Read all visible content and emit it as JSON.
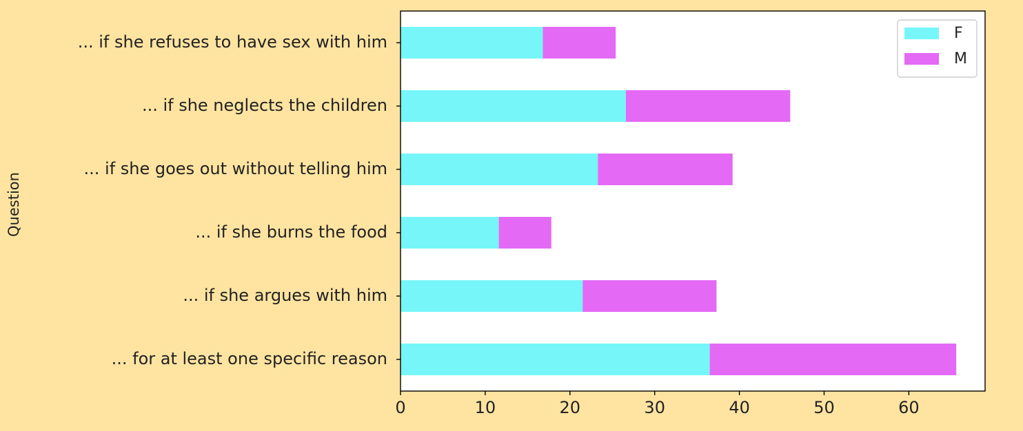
{
  "chart_data": {
    "type": "bar",
    "orientation": "horizontal",
    "stacked": true,
    "categories": [
      "... if she refuses to have sex with him",
      "... if she neglects the children",
      "... if she goes out without telling him",
      "... if she burns the food",
      "... if she argues with him",
      "... for at least one specific reason"
    ],
    "series": [
      {
        "name": "F",
        "color": "#76f6f9",
        "values": [
          16.8,
          26.6,
          23.3,
          11.6,
          21.5,
          36.5
        ]
      },
      {
        "name": "M",
        "color": "#e46af6",
        "values": [
          8.6,
          19.4,
          15.9,
          6.2,
          15.8,
          29.1
        ]
      }
    ],
    "xticks": [
      0,
      10,
      20,
      30,
      40,
      50,
      60
    ],
    "xlim": [
      0,
      69
    ],
    "xlabel": "",
    "ylabel": "Question",
    "legend": {
      "position": "top-right",
      "entries": [
        "F",
        "M"
      ]
    },
    "grid": false
  }
}
